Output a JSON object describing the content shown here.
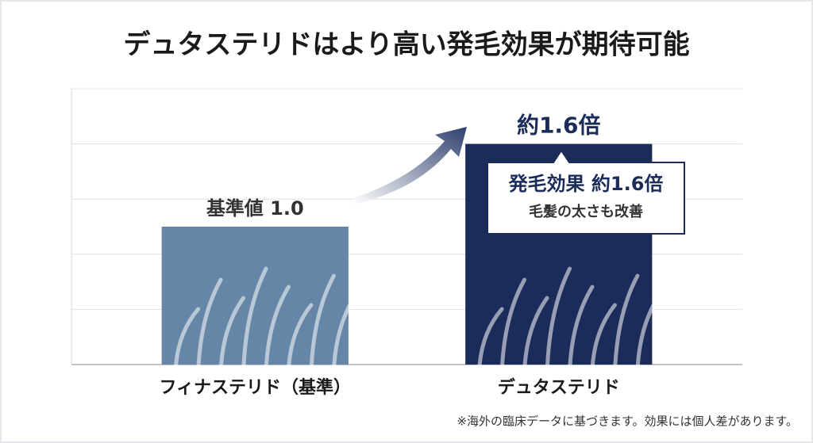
{
  "chart_data": {
    "type": "bar",
    "title": "デュタステリドはより高い発毛効果が期待可能",
    "categories": [
      "フィナステリド（基準）",
      "デュタステリド"
    ],
    "values": [
      1.0,
      1.6
    ],
    "value_labels": [
      "基準値 1.0",
      "約1.6倍"
    ],
    "colors": [
      "#6586a7",
      "#1b2c5b"
    ],
    "ylim": [
      0,
      2
    ],
    "yticks": [
      0,
      0.4,
      0.8,
      1.2,
      1.6,
      2
    ],
    "grid": true,
    "annotations": [
      "発毛効果 約1.6倍",
      "毛髪の太さも改善"
    ],
    "footnote": "※海外の臨床データに基づきます。効果には個人差があります。"
  }
}
